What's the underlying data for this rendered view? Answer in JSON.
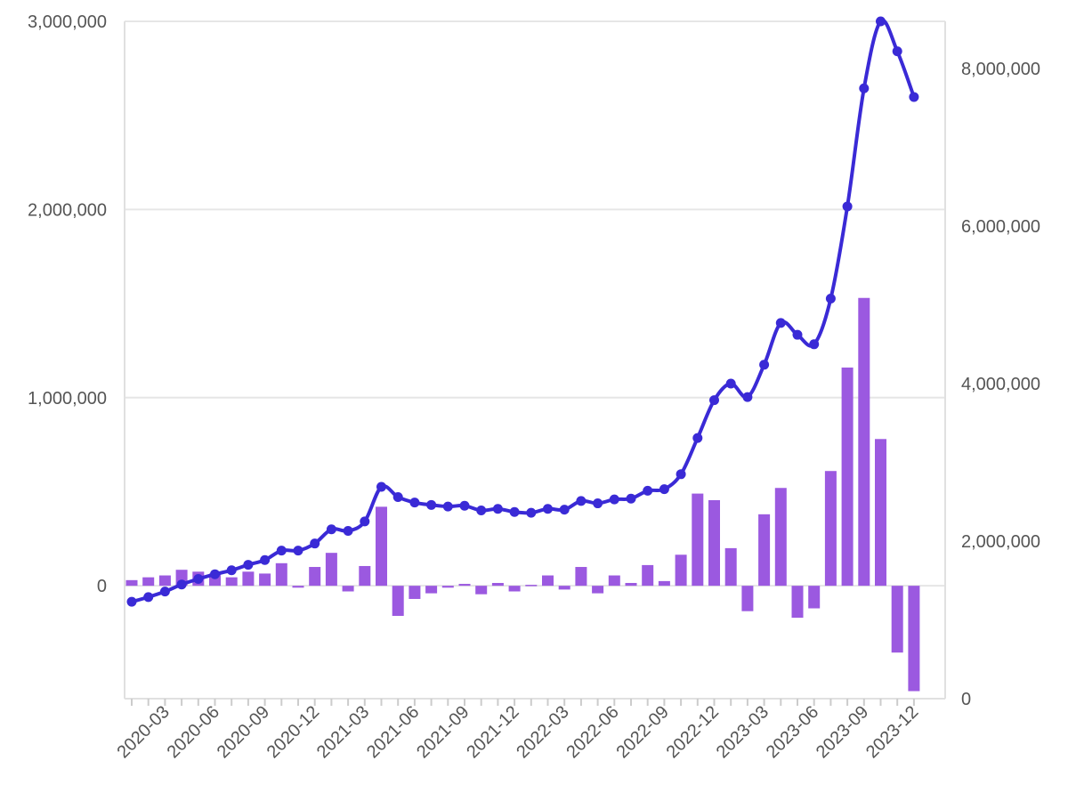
{
  "chart_data": {
    "type": "bar+line",
    "title": "",
    "xlabel": "",
    "ylabel_left": "",
    "ylabel_right": "",
    "grid": true,
    "legend": "none",
    "x_tick_labels": [
      "2020-03",
      "2020-06",
      "2020-09",
      "2020-12",
      "2021-03",
      "2021-06",
      "2021-09",
      "2021-12",
      "2022-03",
      "2022-06",
      "2022-09",
      "2022-12",
      "2023-03",
      "2023-06",
      "2023-09",
      "2023-12"
    ],
    "left_axis": {
      "range": [
        -600000,
        3000000
      ],
      "ticks": [
        0,
        1000000,
        2000000,
        3000000
      ],
      "tick_labels": [
        "0",
        "1,000,000",
        "2,000,000",
        "3,000,000"
      ]
    },
    "right_axis": {
      "range": [
        0,
        8600000
      ],
      "ticks": [
        0,
        2000000,
        4000000,
        6000000,
        8000000
      ],
      "tick_labels": [
        "0",
        "2,000,000",
        "4,000,000",
        "6,000,000",
        "8,000,000"
      ]
    },
    "x": [
      "2020-01",
      "2020-02",
      "2020-03",
      "2020-04",
      "2020-05",
      "2020-06",
      "2020-07",
      "2020-08",
      "2020-09",
      "2020-10",
      "2020-11",
      "2020-12",
      "2021-01",
      "2021-02",
      "2021-03",
      "2021-04",
      "2021-05",
      "2021-06",
      "2021-07",
      "2021-08",
      "2021-09",
      "2021-10",
      "2021-11",
      "2021-12",
      "2022-01",
      "2022-02",
      "2022-03",
      "2022-04",
      "2022-05",
      "2022-06",
      "2022-07",
      "2022-08",
      "2022-09",
      "2022-10",
      "2022-11",
      "2022-12",
      "2023-01",
      "2023-02",
      "2023-03",
      "2023-04",
      "2023-05",
      "2023-06",
      "2023-07",
      "2023-08",
      "2023-09",
      "2023-10",
      "2023-11",
      "2023-12"
    ],
    "colors": {
      "bars": "#9b59e0",
      "line": "#3a2ad6"
    },
    "series": [
      {
        "type": "bar",
        "axis": "left",
        "values": [
          30000,
          45000,
          55000,
          85000,
          75000,
          65000,
          45000,
          75000,
          65000,
          120000,
          -10000,
          100000,
          175000,
          -30000,
          105000,
          420000,
          -160000,
          -70000,
          -40000,
          -10000,
          10000,
          -45000,
          15000,
          -30000,
          5000,
          55000,
          -20000,
          100000,
          -40000,
          55000,
          15000,
          110000,
          25000,
          165000,
          490000,
          455000,
          200000,
          -135000,
          380000,
          520000,
          -170000,
          -120000,
          610000,
          1160000,
          1530000,
          780000,
          -355000,
          -560000
        ]
      },
      {
        "type": "line",
        "axis": "right",
        "values": [
          1230000,
          1290000,
          1360000,
          1450000,
          1520000,
          1580000,
          1630000,
          1700000,
          1760000,
          1880000,
          1880000,
          1970000,
          2150000,
          2130000,
          2250000,
          2690000,
          2560000,
          2490000,
          2460000,
          2440000,
          2450000,
          2390000,
          2410000,
          2370000,
          2360000,
          2410000,
          2400000,
          2510000,
          2480000,
          2530000,
          2540000,
          2640000,
          2660000,
          2850000,
          3310000,
          3790000,
          4000000,
          3830000,
          4240000,
          4770000,
          4620000,
          4500000,
          5080000,
          6250000,
          7750000,
          8600000,
          8220000,
          7640000
        ]
      }
    ]
  }
}
